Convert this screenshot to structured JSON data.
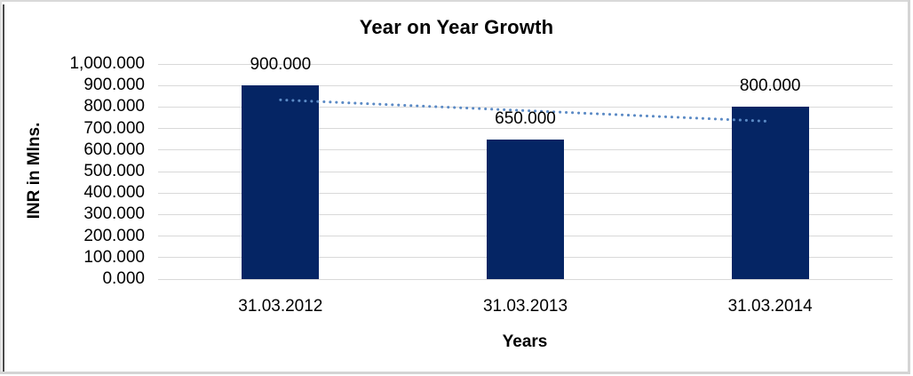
{
  "chart_data": {
    "type": "bar",
    "title": "Year on Year Growth",
    "xlabel": "Years",
    "ylabel": "INR in Mlns.",
    "categories": [
      "31.03.2012",
      "31.03.2013",
      "31.03.2014"
    ],
    "values": [
      900.0,
      650.0,
      800.0
    ],
    "data_labels": [
      "900.000",
      "650.000",
      "800.000"
    ],
    "ylim": [
      0,
      1000
    ],
    "ytick_step": 100,
    "ytick_labels": [
      "0.000",
      "100.000",
      "200.000",
      "300.000",
      "400.000",
      "500.000",
      "600.000",
      "700.000",
      "800.000",
      "900.000",
      "1,000.000"
    ],
    "grid": true,
    "legend": "none",
    "bar_color": "#052564",
    "gridline_color": "#d9d9d9",
    "text_color": "#000000",
    "trendline": {
      "type": "linear",
      "style": "dotted",
      "color": "#5b8ac5",
      "start_value": 833.3,
      "end_value": 733.3
    }
  }
}
